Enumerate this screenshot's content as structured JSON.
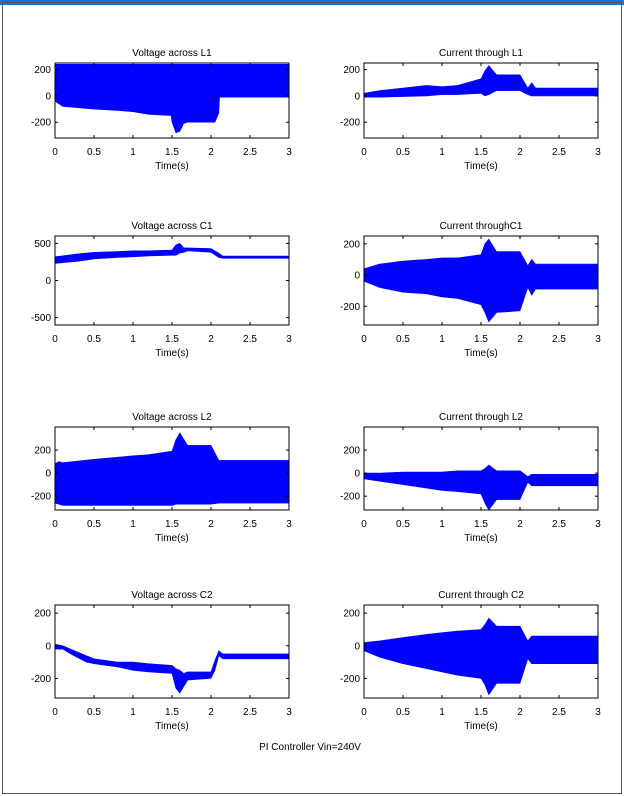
{
  "colors": {
    "trace": "#0000ff",
    "axis": "#000000",
    "frame_top": "#1a6fd0",
    "frame": "#555555",
    "background": "#ffffff"
  },
  "footer_caption": "PI Controller Vin=240V",
  "chart_data": [
    {
      "type": "area",
      "title": "Voltage across L1",
      "xlabel": "Time(s)",
      "ylabel": "",
      "xlim": [
        0,
        3
      ],
      "ylim": [
        -320,
        250
      ],
      "xticks": [
        0,
        0.5,
        1,
        1.5,
        2,
        2.5,
        3
      ],
      "xtick_labels": [
        "0",
        "0.5",
        "1",
        "1.5",
        "2",
        "2.5",
        "3"
      ],
      "yticks": [
        200,
        0,
        -200
      ],
      "ytick_labels": [
        "200",
        "0",
        "-200"
      ],
      "series": [
        {
          "x": [
            0,
            0.05,
            0.1,
            0.5,
            0.8,
            1,
            1.2,
            1.49,
            1.5,
            1.55,
            1.6,
            1.65,
            1.7,
            1.9,
            2.05,
            2.1,
            2.11,
            2.2,
            2.5,
            3
          ],
          "upper": [
            240,
            240,
            240,
            240,
            240,
            240,
            240,
            240,
            240,
            240,
            240,
            240,
            240,
            240,
            240,
            240,
            240,
            240,
            240,
            240
          ],
          "lower": [
            -40,
            -60,
            -80,
            -100,
            -110,
            -120,
            -140,
            -150,
            -200,
            -280,
            -270,
            -210,
            -200,
            -200,
            -200,
            -130,
            -10,
            -10,
            -10,
            -10
          ]
        }
      ]
    },
    {
      "type": "area",
      "title": "Current through L1",
      "xlabel": "Time(s)",
      "ylabel": "",
      "xlim": [
        0,
        3
      ],
      "ylim": [
        -320,
        250
      ],
      "xticks": [
        0,
        0.5,
        1,
        1.5,
        2,
        2.5,
        3
      ],
      "xtick_labels": [
        "0",
        "0.5",
        "1",
        "1.5",
        "2",
        "2.5",
        "3"
      ],
      "yticks": [
        200,
        0,
        -200
      ],
      "ytick_labels": [
        "200",
        "0",
        "-200"
      ],
      "series": [
        {
          "x": [
            0,
            0.2,
            0.5,
            0.8,
            1,
            1.2,
            1.5,
            1.55,
            1.6,
            1.7,
            2,
            2.1,
            2.15,
            2.2,
            2.5,
            3
          ],
          "upper": [
            20,
            40,
            60,
            80,
            70,
            80,
            130,
            190,
            230,
            160,
            160,
            60,
            100,
            60,
            60,
            60
          ],
          "lower": [
            -10,
            -10,
            -5,
            0,
            10,
            10,
            20,
            0,
            10,
            40,
            40,
            10,
            0,
            0,
            0,
            0
          ]
        }
      ]
    },
    {
      "type": "area",
      "title": "Voltage across C1",
      "xlabel": "Time(s)",
      "ylabel": "",
      "xlim": [
        0,
        3
      ],
      "ylim": [
        -600,
        600
      ],
      "xticks": [
        0,
        0.5,
        1,
        1.5,
        2,
        2.5,
        3
      ],
      "xtick_labels": [
        "0",
        "0.5",
        "1",
        "1.5",
        "2",
        "2.5",
        "3"
      ],
      "yticks": [
        500,
        0,
        -500
      ],
      "ytick_labels": [
        "500",
        "0",
        "-500"
      ],
      "series": [
        {
          "x": [
            0,
            0.3,
            0.5,
            0.8,
            1,
            1.2,
            1.5,
            1.55,
            1.6,
            1.65,
            1.7,
            2,
            2.1,
            2.15,
            2.5,
            3
          ],
          "upper": [
            320,
            360,
            380,
            390,
            400,
            400,
            410,
            480,
            500,
            440,
            440,
            430,
            370,
            330,
            330,
            330
          ],
          "lower": [
            230,
            260,
            290,
            310,
            320,
            330,
            340,
            340,
            370,
            380,
            400,
            380,
            310,
            300,
            300,
            300
          ]
        }
      ]
    },
    {
      "type": "area",
      "title": "Current throughC1",
      "xlabel": "Time(s)",
      "ylabel": "",
      "xlim": [
        0,
        3
      ],
      "ylim": [
        -320,
        250
      ],
      "xticks": [
        0,
        0.5,
        1,
        1.5,
        2,
        2.5,
        3
      ],
      "xtick_labels": [
        "0",
        "0.5",
        "1",
        "1.5",
        "2",
        "2.5",
        "3"
      ],
      "yticks": [
        200,
        0,
        -200
      ],
      "ytick_labels": [
        "200",
        "0",
        "-200"
      ],
      "series": [
        {
          "x": [
            0,
            0.2,
            0.5,
            0.8,
            1,
            1.2,
            1.5,
            1.55,
            1.6,
            1.7,
            2,
            2.1,
            2.15,
            2.2,
            2.5,
            3
          ],
          "upper": [
            40,
            70,
            90,
            100,
            110,
            110,
            130,
            200,
            230,
            150,
            150,
            60,
            100,
            70,
            70,
            70
          ],
          "lower": [
            -40,
            -80,
            -110,
            -120,
            -140,
            -150,
            -190,
            -240,
            -300,
            -240,
            -230,
            -80,
            -130,
            -90,
            -90,
            -90
          ]
        }
      ]
    },
    {
      "type": "area",
      "title": "Voltage across L2",
      "xlabel": "Time(s)",
      "ylabel": "",
      "xlim": [
        0,
        3
      ],
      "ylim": [
        -320,
        400
      ],
      "xticks": [
        0,
        0.5,
        1,
        1.5,
        2,
        2.5,
        3
      ],
      "xtick_labels": [
        "0",
        "0.5",
        "1",
        "1.5",
        "2",
        "2.5",
        "3"
      ],
      "yticks": [
        200,
        0,
        -200
      ],
      "ytick_labels": [
        "200",
        "0",
        "-200"
      ],
      "series": [
        {
          "x": [
            0,
            0.05,
            0.1,
            0.5,
            1,
            1.2,
            1.5,
            1.55,
            1.6,
            1.7,
            2,
            2.1,
            2.11,
            2.5,
            3
          ],
          "upper": [
            80,
            100,
            90,
            120,
            150,
            160,
            190,
            290,
            350,
            240,
            240,
            110,
            110,
            110,
            110
          ],
          "lower": [
            -260,
            -270,
            -280,
            -280,
            -280,
            -280,
            -280,
            -270,
            -270,
            -270,
            -270,
            -260,
            -260,
            -260,
            -260
          ]
        }
      ]
    },
    {
      "type": "area",
      "title": "Current through L2",
      "xlabel": "Time(s)",
      "ylabel": "",
      "xlim": [
        0,
        3
      ],
      "ylim": [
        -320,
        400
      ],
      "xticks": [
        0,
        0.5,
        1,
        1.5,
        2,
        2.5,
        3
      ],
      "xtick_labels": [
        "0",
        "0.5",
        "1",
        "1.5",
        "2",
        "2.5",
        "3"
      ],
      "yticks": [
        200,
        0,
        -200
      ],
      "ytick_labels": [
        "200",
        "0",
        "-200"
      ],
      "series": [
        {
          "x": [
            0,
            0.2,
            0.5,
            0.8,
            1,
            1.2,
            1.5,
            1.55,
            1.6,
            1.7,
            2,
            2.1,
            2.15,
            2.5,
            3
          ],
          "upper": [
            0,
            0,
            10,
            10,
            10,
            20,
            20,
            40,
            70,
            20,
            20,
            -30,
            -10,
            -10,
            -10
          ],
          "lower": [
            -50,
            -70,
            -100,
            -130,
            -150,
            -160,
            -180,
            -260,
            -320,
            -230,
            -230,
            -80,
            -110,
            -110,
            -110
          ]
        }
      ]
    },
    {
      "type": "area",
      "title": "Voltage across C2",
      "xlabel": "Time(s)",
      "ylabel": "",
      "xlim": [
        0,
        3
      ],
      "ylim": [
        -320,
        250
      ],
      "xticks": [
        0,
        0.5,
        1,
        1.5,
        2,
        2.5,
        3
      ],
      "xtick_labels": [
        "0",
        "0.5",
        "1",
        "1.5",
        "2",
        "2.5",
        "3"
      ],
      "yticks": [
        200,
        0,
        -200
      ],
      "ytick_labels": [
        "200",
        "0",
        "-200"
      ],
      "series": [
        {
          "x": [
            0,
            0.1,
            0.2,
            0.4,
            0.5,
            0.8,
            1,
            1.2,
            1.5,
            1.55,
            1.6,
            1.65,
            1.7,
            2,
            2.05,
            2.1,
            2.15,
            2.2,
            2.5,
            3
          ],
          "upper": [
            10,
            0,
            -20,
            -60,
            -80,
            -100,
            -100,
            -110,
            -120,
            -140,
            -150,
            -170,
            -160,
            -160,
            -90,
            -30,
            -50,
            -50,
            -50,
            -50
          ],
          "lower": [
            -20,
            -20,
            -50,
            -100,
            -110,
            -130,
            -150,
            -160,
            -170,
            -260,
            -290,
            -250,
            -210,
            -200,
            -150,
            -60,
            -80,
            -80,
            -80,
            -80
          ]
        }
      ]
    },
    {
      "type": "area",
      "title": "Current through C2",
      "xlabel": "Time(s)",
      "ylabel": "",
      "xlim": [
        0,
        3
      ],
      "ylim": [
        -320,
        250
      ],
      "xticks": [
        0,
        0.5,
        1,
        1.5,
        2,
        2.5,
        3
      ],
      "xtick_labels": [
        "0",
        "0.5",
        "1",
        "1.5",
        "2",
        "2.5",
        "3"
      ],
      "yticks": [
        200,
        0,
        -200
      ],
      "ytick_labels": [
        "200",
        "0",
        "-200"
      ],
      "series": [
        {
          "x": [
            0,
            0.2,
            0.5,
            0.8,
            1,
            1.2,
            1.5,
            1.55,
            1.6,
            1.7,
            2,
            2.1,
            2.15,
            2.5,
            3
          ],
          "upper": [
            20,
            30,
            50,
            70,
            80,
            90,
            100,
            130,
            170,
            120,
            120,
            30,
            60,
            60,
            60
          ],
          "lower": [
            -30,
            -70,
            -110,
            -140,
            -160,
            -180,
            -200,
            -240,
            -300,
            -230,
            -230,
            -80,
            -110,
            -110,
            -110
          ]
        }
      ]
    }
  ]
}
